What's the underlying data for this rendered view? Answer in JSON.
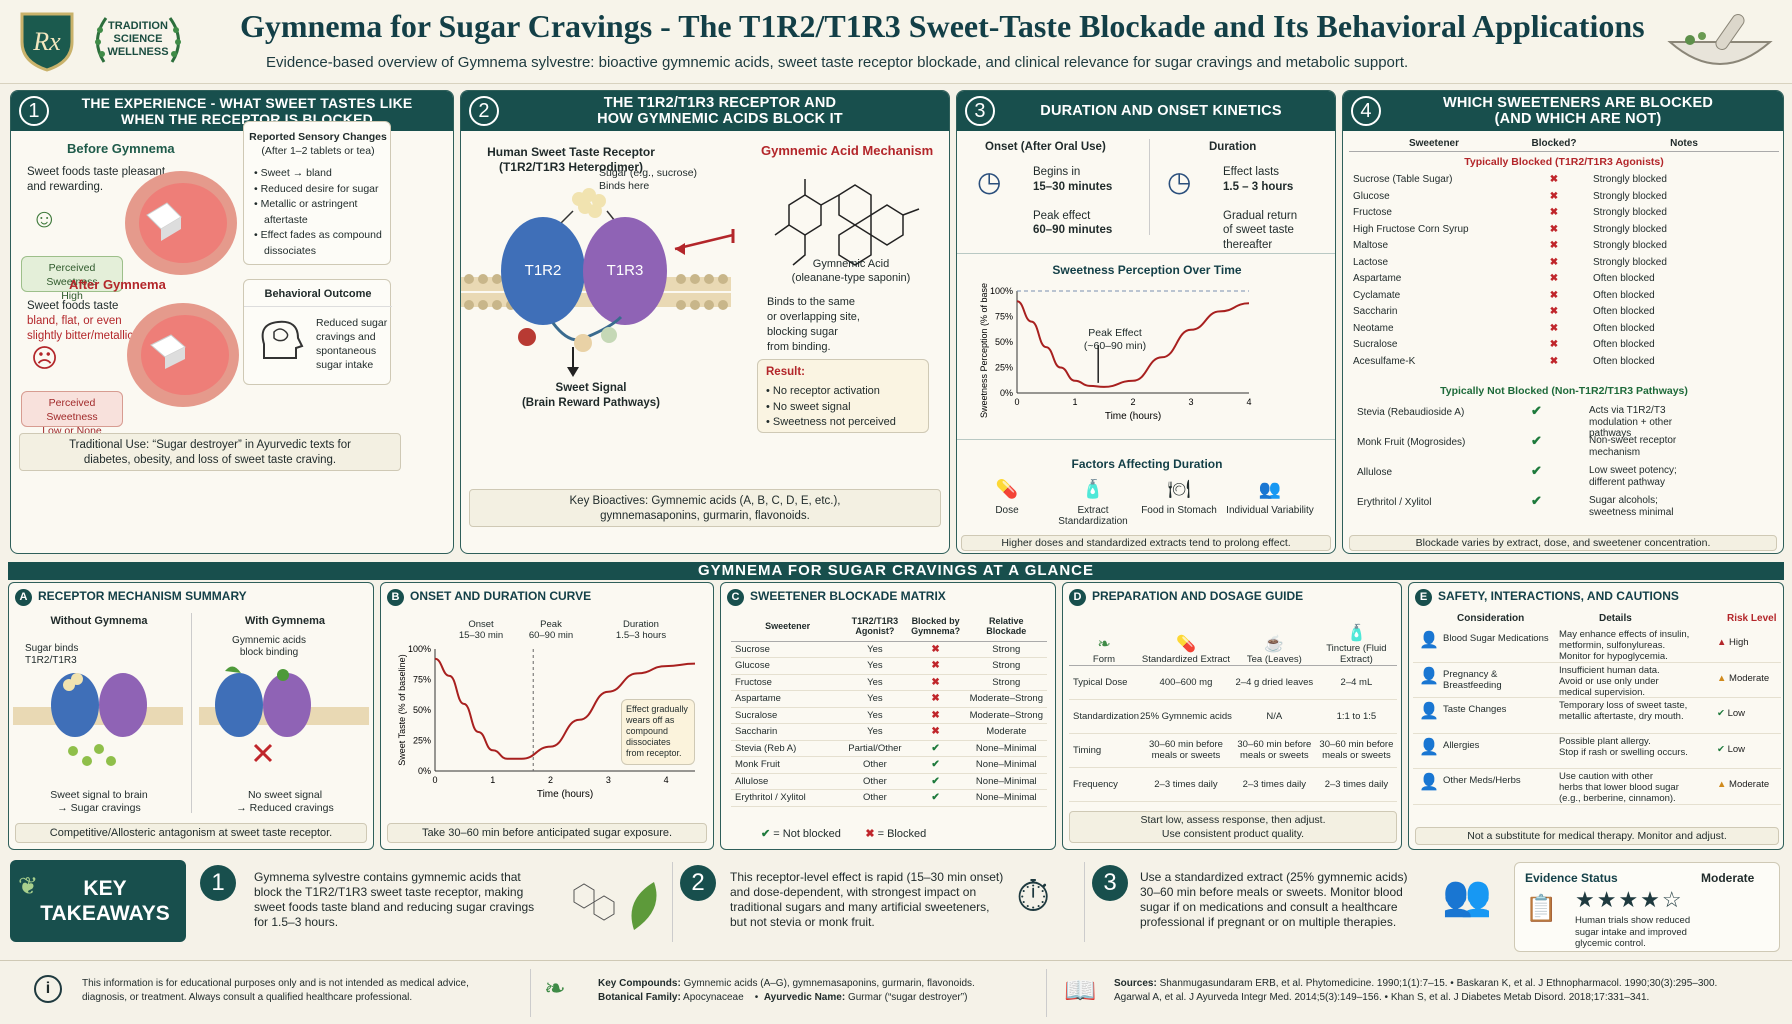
{
  "header": {
    "title": "Gymnema for Sugar Cravings - The T1R2/T1R3 Sweet-Taste Blockade and Its Behavioral Applications",
    "subtitle": "Evidence-based overview of Gymnema sylvestre: bioactive gymnemic acids, sweet taste receptor blockade, and clinical relevance for sugar cravings and metabolic support.",
    "logo_text": "Rx",
    "badge": [
      "TRADITION",
      "SCIENCE",
      "WELLNESS"
    ]
  },
  "p1": {
    "num": "1",
    "title": "THE EXPERIENCE - WHAT SWEET TASTES LIKE WHEN THE RECEPTOR IS BLOCKED",
    "before_h": "Before Gymnema",
    "before_t": [
      "Sweet foods taste pleasant",
      "and rewarding."
    ],
    "before_badge": [
      "Perceived Sweetness",
      "High"
    ],
    "after_h": "After Gymnema",
    "after_t": [
      "Sweet foods taste",
      "bland, flat, or even",
      "slightly bitter/metallic."
    ],
    "after_badge": [
      "Perceived Sweetness",
      "Low or None"
    ],
    "sens_h": [
      "Reported Sensory Changes",
      "(After 1–2 tablets or tea)"
    ],
    "sens": [
      "Sweet → bland",
      "Reduced desire for sugar",
      "Metallic or astringent",
      "aftertaste",
      "Effect fades as compound",
      "dissociates"
    ],
    "beh_h": "Behavioral Outcome",
    "beh": [
      "Reduced sugar",
      "cravings and",
      "spontaneous",
      "sugar intake"
    ],
    "foot": [
      "Traditional Use: “Sugar destroyer” in Ayurvedic texts for",
      "diabetes, obesity, and loss of sweet taste craving."
    ]
  },
  "p2": {
    "num": "2",
    "title": [
      "THE T1R2/T1R3 RECEPTOR AND",
      "HOW GYMNEMIC ACIDS BLOCK IT"
    ],
    "rec_h": [
      "Human Sweet Taste Receptor",
      "(T1R2/T1R3 Heterodimer)"
    ],
    "sugar": [
      "Sugar (e.g., sucrose)",
      "Binds here"
    ],
    "t1r2": "T1R2",
    "t1r3": "T1R3",
    "signal": [
      "Sweet Signal",
      "(Brain Reward Pathways)"
    ],
    "mech_h": "Gymnemic Acid Mechanism",
    "acid": [
      "Gymnemic Acid",
      "(oleanane-type saponin)"
    ],
    "binds": [
      "Binds to the same",
      "or overlapping site,",
      "blocking sugar",
      "from binding."
    ],
    "res_h": "Result:",
    "res": [
      "No receptor activation",
      "No sweet signal",
      "Sweetness not perceived"
    ],
    "foot": [
      "Key Bioactives: Gymnemic acids (A, B, C, D, E, etc.),",
      "gymnemasaponins, gurmarin, flavonoids."
    ]
  },
  "p3": {
    "num": "3",
    "title": "DURATION AND ONSET KINETICS",
    "onset_h": "Onset (After Oral Use)",
    "onset": [
      "Begins in",
      "15–30 minutes",
      "",
      "Peak effect",
      "60–90 minutes"
    ],
    "dur_h": "Duration",
    "dur": [
      "Effect lasts",
      "1.5 – 3 hours",
      "",
      "Gradual return",
      "of sweet taste",
      "thereafter"
    ],
    "chart_h": "Sweetness Perception Over Time",
    "peak": [
      "Peak Effect",
      "(~60–90 min)"
    ],
    "factors_h": "Factors Affecting Duration",
    "factors": [
      "Dose",
      "Extract Standardization",
      "Food in Stomach",
      "Individual Variability"
    ],
    "foot": "Higher doses and standardized extracts tend to prolong effect."
  },
  "p4": {
    "num": "4",
    "title": [
      "WHICH SWEETENERS ARE BLOCKED",
      "(AND WHICH ARE NOT)"
    ],
    "cols": [
      "Sweetener",
      "Blocked?",
      "Notes"
    ],
    "blocked_h": "Typically Blocked (T1R2/T1R3 Agonists)",
    "blocked": [
      [
        "Sucrose (Table Sugar)",
        "Strongly blocked"
      ],
      [
        "Glucose",
        "Strongly blocked"
      ],
      [
        "Fructose",
        "Strongly blocked"
      ],
      [
        "High Fructose Corn Syrup",
        "Strongly blocked"
      ],
      [
        "Maltose",
        "Strongly blocked"
      ],
      [
        "Lactose",
        "Strongly blocked"
      ],
      [
        "Aspartame",
        "Often blocked"
      ],
      [
        "Cyclamate",
        "Often blocked"
      ],
      [
        "Saccharin",
        "Often blocked"
      ],
      [
        "Neotame",
        "Often blocked"
      ],
      [
        "Sucralose",
        "Often blocked"
      ],
      [
        "Acesulfame-K",
        "Often blocked"
      ]
    ],
    "not_h": "Typically Not Blocked (Non-T1R2/T1R3 Pathways)",
    "not": [
      [
        "Stevia (Rebaudioside A)",
        [
          "Acts via T1R2/T3",
          "modulation + other",
          "pathways"
        ]
      ],
      [
        "Monk Fruit (Mogrosides)",
        [
          "Non-sweet receptor",
          "mechanism"
        ]
      ],
      [
        "Allulose",
        [
          "Low sweet potency;",
          "different pathway"
        ]
      ],
      [
        "Erythritol / Xylitol",
        [
          "Sugar alcohols;",
          "sweetness minimal"
        ]
      ]
    ],
    "foot": "Blockade varies by extract, dose, and sweetener concentration."
  },
  "band": "GYMNEMA FOR SUGAR CRAVINGS AT A GLANCE",
  "a": {
    "letter": "A",
    "title": "RECEPTOR MECHANISM SUMMARY",
    "without": "Without Gymnema",
    "with": "With Gymnema",
    "binds": [
      "Sugar binds",
      "T1R2/T1R3"
    ],
    "blocks": [
      "Gymnemic acids",
      "block binding"
    ],
    "sig": [
      "Sweet signal to brain",
      "→ Sugar cravings"
    ],
    "nosig": [
      "No sweet signal",
      "→ Reduced cravings"
    ],
    "foot": "Competitive/Allosteric antagonism at sweet taste receptor."
  },
  "b": {
    "letter": "B",
    "title": "ONSET AND DURATION CURVE",
    "onset": [
      "Onset",
      "15–30 min"
    ],
    "peak": [
      "Peak",
      "60–90 min"
    ],
    "dur": [
      "Duration",
      "1.5–3 hours"
    ],
    "note": [
      "Effect gradually",
      "wears off as",
      "compound",
      "dissociates",
      "from receptor."
    ],
    "foot": "Take 30–60 min before anticipated sugar exposure."
  },
  "c": {
    "letter": "C",
    "title": "SWEETENER BLOCKADE MATRIX",
    "cols": [
      "Sweetener",
      "T1R2/T1R3 Agonist?",
      "Blocked by Gymnema?",
      "Relative Blockade"
    ],
    "rows": [
      [
        "Sucrose",
        "Yes",
        "x",
        "Strong"
      ],
      [
        "Glucose",
        "Yes",
        "x",
        "Strong"
      ],
      [
        "Fructose",
        "Yes",
        "x",
        "Strong"
      ],
      [
        "Aspartame",
        "Yes",
        "x",
        "Moderate–Strong"
      ],
      [
        "Sucralose",
        "Yes",
        "x",
        "Moderate–Strong"
      ],
      [
        "Saccharin",
        "Yes",
        "x",
        "Moderate"
      ],
      [
        "Stevia (Reb A)",
        "Partial/Other",
        "v",
        "None–Minimal"
      ],
      [
        "Monk Fruit",
        "Other",
        "v",
        "None–Minimal"
      ],
      [
        "Allulose",
        "Other",
        "v",
        "None–Minimal"
      ],
      [
        "Erythritol / Xylitol",
        "Other",
        "v",
        "None–Minimal"
      ]
    ],
    "legend_ok": "= Not blocked",
    "legend_x": "= Blocked"
  },
  "d": {
    "letter": "D",
    "title": "PREPARATION AND DOSAGE GUIDE",
    "cols": [
      "Form",
      "Standardized Extract",
      "Tea (Leaves)",
      "Tincture (Fluid Extract)"
    ],
    "rows": [
      [
        "Typical Dose",
        "400–600 mg",
        "2–4 g dried leaves",
        "2–4 mL"
      ],
      [
        "Standardization",
        "25% Gymnemic acids",
        "N/A",
        "1:1 to 1:5"
      ],
      [
        "Timing",
        "30–60 min before meals or sweets",
        "30–60 min before meals or sweets",
        "30–60 min before meals or sweets"
      ],
      [
        "Frequency",
        "2–3 times daily",
        "2–3 times daily",
        "2–3 times daily"
      ]
    ],
    "foot": [
      "Start low, assess response, then adjust.",
      "Use consistent product quality."
    ]
  },
  "e": {
    "letter": "E",
    "title": "SAFETY, INTERACTIONS, AND CAUTIONS",
    "cols": [
      "Consideration",
      "Details",
      "Risk Level"
    ],
    "rows": [
      [
        "Blood Sugar Medications",
        [
          "May enhance effects of insulin,",
          "metformin, sulfonylureas.",
          "Monitor for hypoglycemia."
        ],
        "High"
      ],
      [
        "Pregnancy & Breastfeeding",
        [
          "Insufficient human data.",
          "Avoid or use only under",
          "medical supervision."
        ],
        "Moderate"
      ],
      [
        "Taste Changes",
        [
          "Temporary loss of sweet taste,",
          "metallic aftertaste, dry mouth."
        ],
        "Low"
      ],
      [
        "Allergies",
        [
          "Possible plant allergy.",
          "Stop if rash or swelling occurs."
        ],
        "Low"
      ],
      [
        "Other Meds/Herbs",
        [
          "Use caution with other",
          "herbs that lower blood sugar",
          "(e.g., berberine, cinnamon)."
        ],
        "Moderate"
      ]
    ],
    "foot": "Not a substitute for medical therapy. Monitor and adjust."
  },
  "key": {
    "title": [
      "KEY",
      "TAKEAWAYS"
    ],
    "k1": [
      "Gymnema sylvestre contains gymnemic acids that",
      "block the T1R2/T1R3 sweet taste receptor, making",
      "sweet foods taste bland and reducing sugar cravings",
      "for 1.5–3 hours."
    ],
    "k2": [
      "This receptor-level effect is rapid (15–30 min onset)",
      "and dose-dependent, with strongest impact on",
      "traditional sugars and many artificial sweeteners,",
      "but not stevia or monk fruit."
    ],
    "k3": [
      "Use a standardized extract (25% gymnemic acids)",
      "30–60 min before meals or sweets. Monitor blood",
      "sugar if on medications and consult a healthcare",
      "professional if pregnant or on multiple therapies."
    ],
    "ev_h": "Evidence Status",
    "ev_level": "Moderate",
    "ev_stars": 4,
    "ev_t": [
      "Human trials show reduced",
      "sugar intake and improved",
      "glycemic control."
    ]
  },
  "footer": {
    "disclaimer": [
      "This information is for educational purposes only and is not intended as medical advice,",
      "diagnosis, or treatment. Always consult a qualified healthcare professional."
    ],
    "compounds_l": "Key Compounds:",
    "compounds": "Gymnemic acids (A–G), gymnemasaponins, gurmarin, flavonoids.",
    "family_l": "Botanical Family:",
    "family": "Apocynaceae",
    "ayur_l": "Ayurvedic Name:",
    "ayur": "Gurmar (“sugar destroyer”)",
    "sources_l": "Sources:",
    "sources": [
      "Shanmugasundaram ERB, et al. Phytomedicine. 1990;1(1):7–15.  •  Baskaran K, et al. J Ethnopharmacol. 1990;30(3):295–300.",
      "Agarwal A, et al. J Ayurveda Integr Med. 2014;5(3):149–156.  •  Khan S, et al. J Diabetes Metab Disord. 2018;17:331–341."
    ]
  },
  "chart_data": [
    {
      "type": "line",
      "title": "Sweetness Perception Over Time",
      "xlabel": "Time (hours)",
      "ylabel": "Sweetness Perception (% of baseline)",
      "x": [
        0,
        0.25,
        0.5,
        0.75,
        1,
        1.25,
        1.5,
        2,
        2.5,
        3,
        3.5,
        4
      ],
      "y": [
        90,
        70,
        45,
        25,
        12,
        7,
        6,
        12,
        35,
        62,
        80,
        88
      ],
      "xlim": [
        0,
        4
      ],
      "ylim": [
        0,
        100
      ],
      "xticks": [
        "0",
        "1",
        "2",
        "3",
        "4"
      ],
      "yticks": [
        "0%",
        "25%",
        "50%",
        "75%",
        "100%"
      ],
      "baseline": 100
    },
    {
      "type": "line",
      "title": "ONSET AND DURATION CURVE",
      "xlabel": "Time (hours)",
      "ylabel": "Sweet Taste (% of baseline)",
      "x": [
        0,
        0.25,
        0.5,
        0.75,
        1,
        1.25,
        1.5,
        2,
        2.5,
        3,
        3.5,
        4,
        4.5
      ],
      "y": [
        92,
        78,
        55,
        32,
        17,
        10,
        10,
        20,
        42,
        65,
        80,
        86,
        88
      ],
      "xlim": [
        0,
        4.5
      ],
      "ylim": [
        0,
        100
      ],
      "xticks": [
        "0",
        "1",
        "2",
        "3",
        "4"
      ],
      "yticks": [
        "0%",
        "25%",
        "50%",
        "75%",
        "100%"
      ]
    }
  ]
}
